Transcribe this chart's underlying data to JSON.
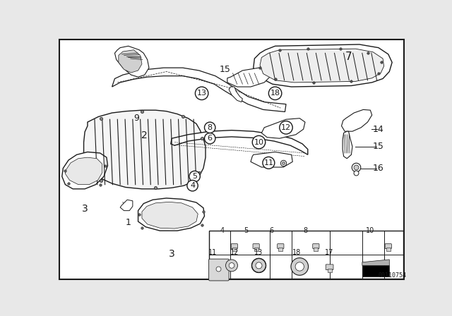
{
  "bg_color": "#e8e8e8",
  "white": "#ffffff",
  "line_color": "#1a1a1a",
  "catalog_number": "00110754",
  "fig_w": 6.4,
  "fig_h": 4.48,
  "dpi": 100
}
